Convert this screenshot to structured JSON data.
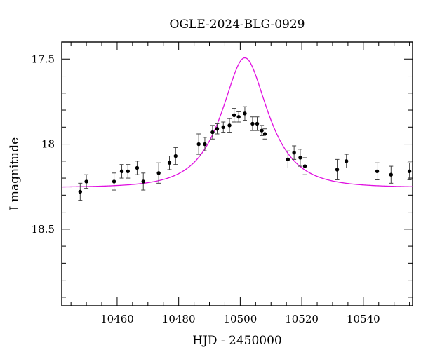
{
  "chart_data": {
    "type": "scatter",
    "title": "OGLE-2024-BLG-0929",
    "xlabel": "HJD - 2450000",
    "ylabel": "I magnitude",
    "xlim": [
      10442,
      10556
    ],
    "ylim": [
      18.95,
      17.4
    ],
    "y_inverted": true,
    "grid": false,
    "x_ticks": [
      10460,
      10480,
      10500,
      10520,
      10540
    ],
    "y_ticks": [
      17.5,
      18,
      18.5
    ],
    "x_tick_labels": [
      "10460",
      "10480",
      "10500",
      "10520",
      "10540"
    ],
    "y_tick_labels": [
      "17.5",
      "18",
      "18.5"
    ],
    "series": [
      {
        "type": "scatter_errorbar",
        "color": "#000000",
        "points": [
          {
            "x": 10448,
            "y": 18.28,
            "err": 0.05
          },
          {
            "x": 10450,
            "y": 18.22,
            "err": 0.04
          },
          {
            "x": 10459,
            "y": 18.22,
            "err": 0.05
          },
          {
            "x": 10461.5,
            "y": 18.16,
            "err": 0.04
          },
          {
            "x": 10463.5,
            "y": 18.16,
            "err": 0.04
          },
          {
            "x": 10466.5,
            "y": 18.14,
            "err": 0.04
          },
          {
            "x": 10468.5,
            "y": 18.22,
            "err": 0.05
          },
          {
            "x": 10473.5,
            "y": 18.17,
            "err": 0.06
          },
          {
            "x": 10477,
            "y": 18.11,
            "err": 0.04
          },
          {
            "x": 10479,
            "y": 18.07,
            "err": 0.05
          },
          {
            "x": 10486.5,
            "y": 18.0,
            "err": 0.06
          },
          {
            "x": 10488.5,
            "y": 18.0,
            "err": 0.04
          },
          {
            "x": 10491,
            "y": 17.93,
            "err": 0.04
          },
          {
            "x": 10492.5,
            "y": 17.91,
            "err": 0.03
          },
          {
            "x": 10494.5,
            "y": 17.9,
            "err": 0.03
          },
          {
            "x": 10496.5,
            "y": 17.89,
            "err": 0.04
          },
          {
            "x": 10498,
            "y": 17.83,
            "err": 0.04
          },
          {
            "x": 10499.5,
            "y": 17.84,
            "err": 0.03
          },
          {
            "x": 10501.5,
            "y": 17.82,
            "err": 0.04
          },
          {
            "x": 10504,
            "y": 17.88,
            "err": 0.04
          },
          {
            "x": 10505.5,
            "y": 17.88,
            "err": 0.04
          },
          {
            "x": 10507,
            "y": 17.92,
            "err": 0.03
          },
          {
            "x": 10508,
            "y": 17.94,
            "err": 0.03
          },
          {
            "x": 10515.5,
            "y": 18.09,
            "err": 0.05
          },
          {
            "x": 10517.5,
            "y": 18.05,
            "err": 0.04
          },
          {
            "x": 10519.5,
            "y": 18.08,
            "err": 0.05
          },
          {
            "x": 10521,
            "y": 18.13,
            "err": 0.05
          },
          {
            "x": 10531.5,
            "y": 18.15,
            "err": 0.06
          },
          {
            "x": 10534.5,
            "y": 18.1,
            "err": 0.04
          },
          {
            "x": 10544.5,
            "y": 18.16,
            "err": 0.05
          },
          {
            "x": 10549,
            "y": 18.18,
            "err": 0.05
          },
          {
            "x": 10555,
            "y": 18.16,
            "err": 0.05
          }
        ]
      },
      {
        "type": "line",
        "color": "#e010e0",
        "model": {
          "t0": 10501.5,
          "tE": 12.3,
          "u0": 0.55,
          "baseline": 18.255
        }
      }
    ]
  }
}
